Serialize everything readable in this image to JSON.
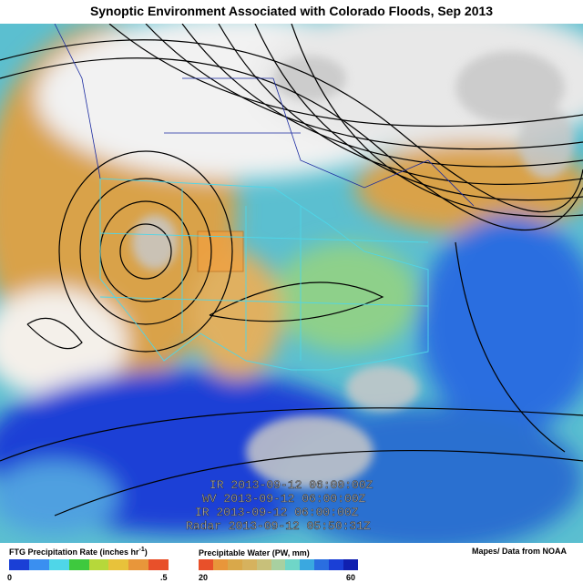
{
  "header": {
    "title": "Synoptic Environment Associated with Colorado Floods, Sep 2013"
  },
  "map": {
    "timestamps": [
      "IR 2013-09-12 06:00:00Z",
      "WV 2013-09-12 06:00:00Z",
      "IR 2013-09-12 06:00:00Z",
      "Radar 2013-09-12 05:50:31Z"
    ]
  },
  "legend": {
    "precip": {
      "title": "FTG Precipitation Rate (inches hr",
      "title_sup": "-1",
      "title_end": ")",
      "low": "0",
      "high": ".5",
      "colors": [
        "#1a3fd6",
        "#3a8ff0",
        "#4fd6e8",
        "#3ec93e",
        "#b6d83a",
        "#e8c23a",
        "#e8963a",
        "#e8502a"
      ]
    },
    "pw": {
      "title": "Precipitable Water (PW, mm)",
      "low": "20",
      "high": "60",
      "colors": [
        "#e8502a",
        "#e8963a",
        "#d9a84a",
        "#d6b25e",
        "#c8c07a",
        "#a8d0a0",
        "#6fd6c8",
        "#3aa8e0",
        "#2a6ee0",
        "#1a3fd6",
        "#1020b0"
      ]
    },
    "credit": "Mapes/ Data from NOAA"
  }
}
